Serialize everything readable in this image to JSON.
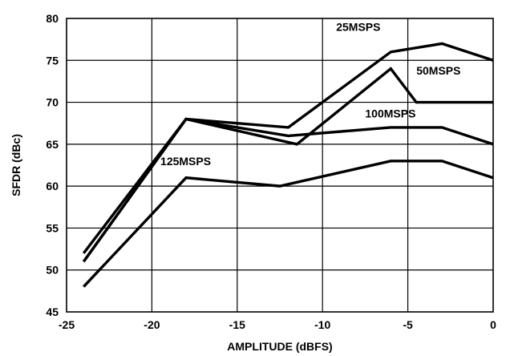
{
  "chart_data": {
    "type": "line",
    "xlabel": "AMPLITUDE (dBFS)",
    "ylabel": "SFDR (dBc)",
    "xlim": [
      -25,
      0
    ],
    "ylim": [
      45,
      80
    ],
    "xticks": [
      -25,
      -20,
      -15,
      -10,
      -5,
      0
    ],
    "yticks": [
      45,
      50,
      55,
      60,
      65,
      70,
      75,
      80
    ],
    "xtick_labels": [
      "-25",
      "-20",
      "-15",
      "-10",
      "-5",
      "0"
    ],
    "ytick_labels": [
      "45",
      "50",
      "55",
      "60",
      "65",
      "70",
      "75",
      "80"
    ],
    "grid": true,
    "series": [
      {
        "name": "25MSPS",
        "x": [
          -24,
          -18,
          -12,
          -6,
          -3,
          0
        ],
        "y": [
          52,
          68,
          67,
          76,
          77,
          75
        ]
      },
      {
        "name": "50MSPS",
        "x": [
          -24,
          -18,
          -11.5,
          -6,
          -4.5,
          0
        ],
        "y": [
          51,
          68,
          65,
          74,
          70,
          70
        ]
      },
      {
        "name": "100MSPS",
        "x": [
          -24,
          -18,
          -12,
          -6,
          -3,
          0
        ],
        "y": [
          51,
          68,
          66,
          67,
          67,
          65
        ]
      },
      {
        "name": "125MSPS",
        "x": [
          -24,
          -18,
          -12.5,
          -6,
          -3,
          0
        ],
        "y": [
          48,
          61,
          60,
          63,
          63,
          61
        ]
      }
    ],
    "annotations": [
      {
        "text": "25MSPS",
        "x": -9.2,
        "y": 78.5
      },
      {
        "text": "50MSPS",
        "x": -4.5,
        "y": 73.3
      },
      {
        "text": "100MSPS",
        "x": -7.5,
        "y": 68.2
      },
      {
        "text": "125MSPS",
        "x": -19.5,
        "y": 62.5
      }
    ]
  }
}
